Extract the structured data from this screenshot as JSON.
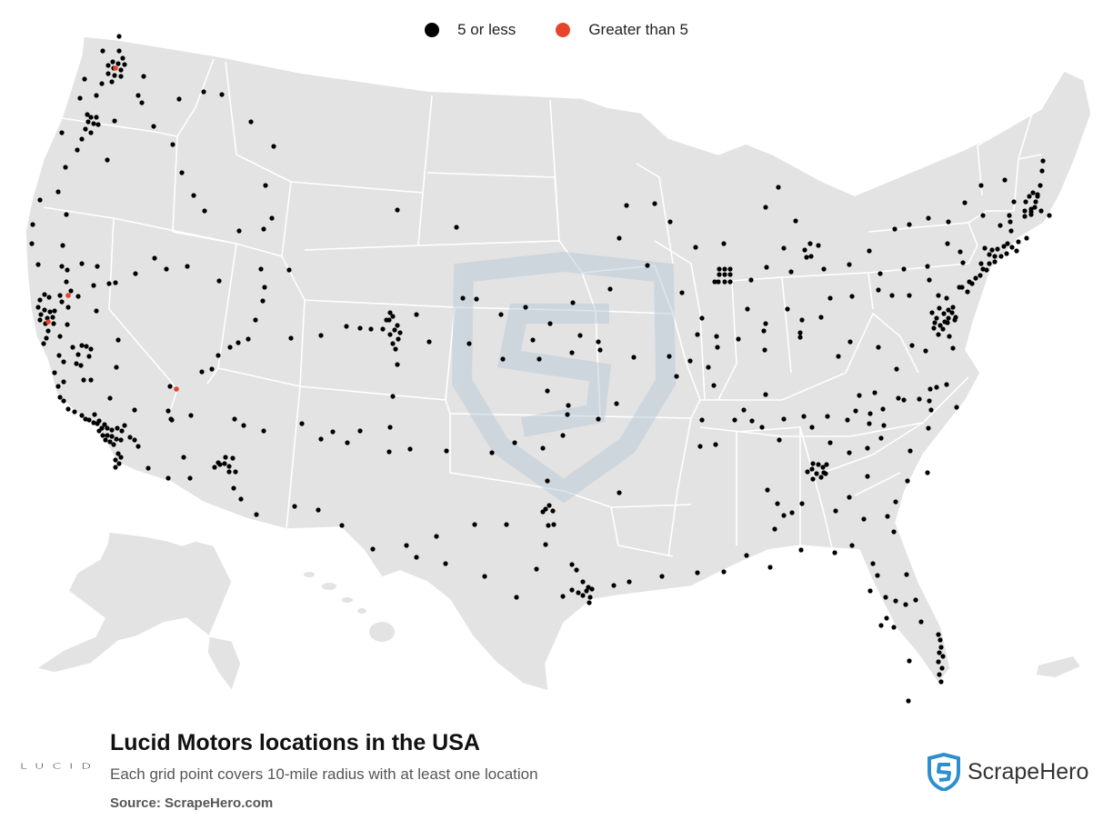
{
  "legend": {
    "items": [
      {
        "label": "5 or less",
        "color": "#000000"
      },
      {
        "label": "Greater than 5",
        "color": "#e8432b"
      }
    ]
  },
  "title": "Lucid Motors locations in the USA",
  "subtitle": "Each grid point covers 10-mile radius with at least one location",
  "source": "Source: ScrapeHero.com",
  "brand": {
    "logo_text": "LUCID",
    "name": "ScrapeHero",
    "accent": "#2b8fd0"
  },
  "map": {
    "land_color": "#e3e3e3",
    "border_color": "#ffffff",
    "watermark_color": "#c9d4de",
    "dot_count_note": "",
    "large_dots": [
      {
        "lat": 47.6,
        "lon": -122.3,
        "category": "Greater than 5"
      },
      {
        "lat": 37.5,
        "lon": -122.1,
        "category": "Greater than 5"
      },
      {
        "lat": 36.9,
        "lon": -121.6,
        "category": "Greater than 5"
      },
      {
        "lat": 36.1,
        "lon": -115.1,
        "category": "Greater than 5"
      }
    ]
  }
}
